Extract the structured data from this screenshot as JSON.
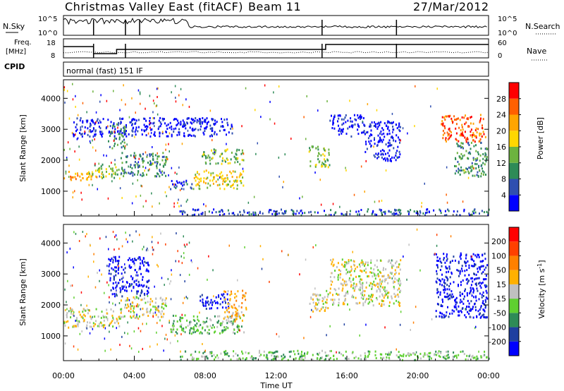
{
  "header": {
    "station": "Christmas Valley East (fitACF)",
    "beam": "Beam 11",
    "date": "27/Mar/2012"
  },
  "status_labels": {
    "nsky": "N.Sky",
    "nsearch": "N.Search",
    "freq": "Freq.",
    "mhz": "[MHz]",
    "nave": "Nave",
    "cpid": "CPID",
    "cpid_value": "normal (fast) 151 IF"
  },
  "status_ticks": {
    "noise_top": "10^5",
    "noise_bottom": "10^0",
    "freq_top": "18",
    "freq_bottom": "8",
    "nave_top": "60",
    "nave_bottom": "0"
  },
  "colors": {
    "power_scale": [
      "#0000ff",
      "#2f4fb0",
      "#2e8b57",
      "#6db33f",
      "#ffd700",
      "#ffa500",
      "#ff6000",
      "#ff0000"
    ],
    "velocity_scale": [
      "#0000ff",
      "#1f3fa0",
      "#2e8b57",
      "#5fd030",
      "#c0c0c0",
      "#ffb000",
      "#ff8000",
      "#ff4000",
      "#ff0000"
    ]
  },
  "chart_data": [
    {
      "type": "heatmap",
      "name": "power-panel",
      "ylabel": "Slant Range [km]",
      "xlabel": "",
      "x_range_hours": [
        0,
        24
      ],
      "ylim_km": [
        200,
        4600
      ],
      "yticks": [
        "1000",
        "2000",
        "3000",
        "4000"
      ],
      "colorbar": {
        "label": "Power [dB]",
        "ticks": [
          "4",
          "8",
          "12",
          "16",
          "20",
          "24",
          "28"
        ]
      },
      "regions": [
        {
          "t0": 0.0,
          "t1": 1.6,
          "r0": 1350,
          "r1": 1700,
          "level": 5
        },
        {
          "t0": 1.6,
          "t1": 3.2,
          "r0": 1450,
          "r1": 1900,
          "level": 3
        },
        {
          "t0": 3.2,
          "t1": 5.8,
          "r0": 1500,
          "r1": 2300,
          "level": 2
        },
        {
          "t0": 2.5,
          "t1": 3.5,
          "r0": 2400,
          "r1": 3200,
          "level": 2
        },
        {
          "t0": 6.0,
          "t1": 7.3,
          "r0": 1100,
          "r1": 1400,
          "level": 1
        },
        {
          "t0": 7.3,
          "t1": 10.2,
          "r0": 1100,
          "r1": 1700,
          "level": 4
        },
        {
          "t0": 7.8,
          "t1": 10.2,
          "r0": 1900,
          "r1": 2400,
          "level": 3
        },
        {
          "t0": 7.5,
          "t1": 8.5,
          "r0": 3200,
          "r1": 3400,
          "level": 1
        },
        {
          "t0": 0.5,
          "t1": 9.5,
          "r0": 2800,
          "r1": 3400,
          "level": 0
        },
        {
          "t0": 13.8,
          "t1": 15.0,
          "r0": 1800,
          "r1": 2500,
          "level": 3
        },
        {
          "t0": 15.0,
          "t1": 17.0,
          "r0": 2800,
          "r1": 3500,
          "level": 0
        },
        {
          "t0": 17.0,
          "t1": 19.0,
          "r0": 2000,
          "r1": 3300,
          "level": 0
        },
        {
          "t0": 21.3,
          "t1": 23.8,
          "r0": 2600,
          "r1": 3500,
          "level": 6
        },
        {
          "t0": 22.0,
          "t1": 23.9,
          "r0": 1500,
          "r1": 2600,
          "level": 2
        },
        {
          "t0": 6.5,
          "t1": 24.0,
          "r0": 250,
          "r1": 450,
          "level": 1
        }
      ]
    },
    {
      "type": "heatmap",
      "name": "velocity-panel",
      "ylabel": "Slant Range [km]",
      "xlabel": "Time UT",
      "x_range_hours": [
        0,
        24
      ],
      "xticks": [
        "00:00",
        "04:00",
        "08:00",
        "12:00",
        "16:00",
        "20:00",
        "00:00"
      ],
      "ylim_km": [
        200,
        4600
      ],
      "yticks": [
        "1000",
        "2000",
        "3000",
        "4000"
      ],
      "colorbar": {
        "label": "Velocity [m s^-1]",
        "ticks": [
          "200",
          "100",
          "50",
          "15",
          "-15",
          "-50",
          "-100",
          "-200"
        ]
      },
      "regions": [
        {
          "t0": 0.0,
          "t1": 3.2,
          "r0": 1300,
          "r1": 1900,
          "level": 4
        },
        {
          "t0": 3.2,
          "t1": 5.8,
          "r0": 1600,
          "r1": 2300,
          "level": 4
        },
        {
          "t0": 2.5,
          "t1": 4.8,
          "r0": 2300,
          "r1": 3600,
          "level": 0
        },
        {
          "t0": 6.0,
          "t1": 10.2,
          "r0": 1100,
          "r1": 1700,
          "level": 3
        },
        {
          "t0": 7.6,
          "t1": 9.3,
          "r0": 1900,
          "r1": 2400,
          "level": 0
        },
        {
          "t0": 9.0,
          "t1": 10.3,
          "r0": 1500,
          "r1": 2500,
          "level": 5
        },
        {
          "t0": 13.8,
          "t1": 15.0,
          "r0": 1800,
          "r1": 2500,
          "level": 4
        },
        {
          "t0": 15.0,
          "t1": 19.0,
          "r0": 2000,
          "r1": 3500,
          "level": 4
        },
        {
          "t0": 21.0,
          "t1": 23.9,
          "r0": 1600,
          "r1": 3700,
          "level": 0
        },
        {
          "t0": 6.5,
          "t1": 24.0,
          "r0": 250,
          "r1": 550,
          "level": 3
        }
      ]
    }
  ]
}
